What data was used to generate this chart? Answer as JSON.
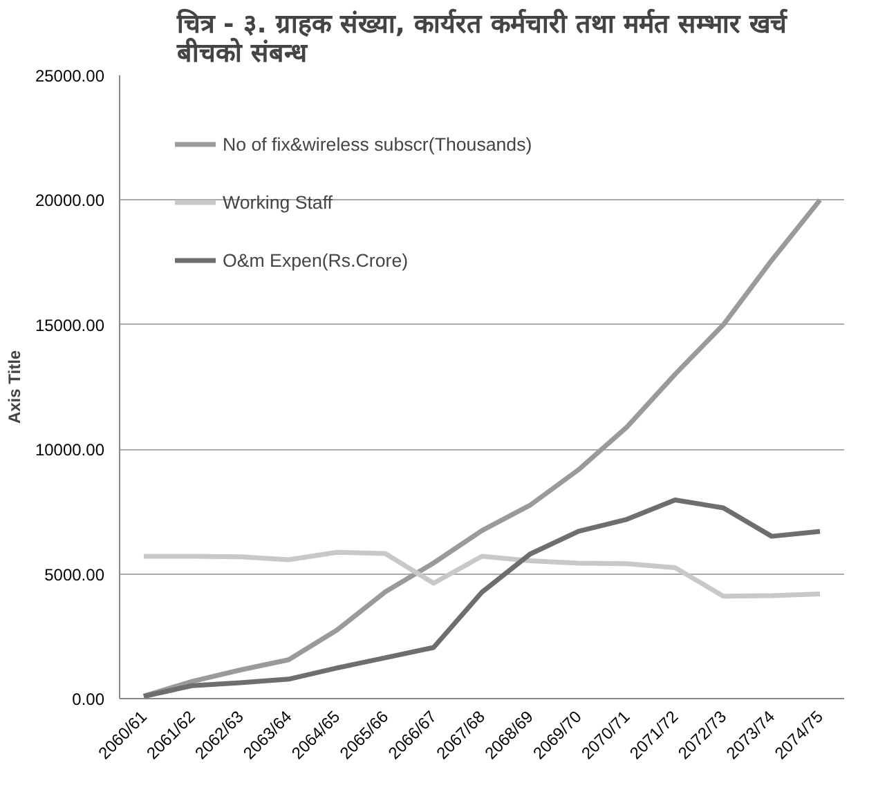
{
  "chart_data": {
    "type": "line",
    "title": "चित्र - ३. ग्राहक संख्या, कार्यरत कर्मचारी तथा मर्मत सम्भार खर्च बीचको संबन्ध",
    "ylabel": "Axis Title",
    "categories": [
      "2060/61",
      "2061/62",
      "2062/63",
      "2063/64",
      "2064/65",
      "2065/66",
      "2066/67",
      "2067/68",
      "2068/69",
      "2069/70",
      "2070/71",
      "2071/72",
      "2072/73",
      "2073/74",
      "2074/75"
    ],
    "series": [
      {
        "name": "No of fix&wireless subscr(Thousands)",
        "color": "#9a9a9a",
        "values": [
          100,
          690,
          1150,
          1560,
          2750,
          4280,
          5440,
          6740,
          7760,
          9180,
          10890,
          13010,
          15000,
          17580,
          20000
        ]
      },
      {
        "name": "Working Staff",
        "color": "#c8c8c8",
        "values": [
          5710,
          5710,
          5690,
          5570,
          5870,
          5820,
          4630,
          5710,
          5530,
          5430,
          5410,
          5250,
          4110,
          4130,
          4200
        ]
      },
      {
        "name": "O&m Expen(Rs.Crore)",
        "color": "#6e6e6e",
        "values": [
          90,
          520,
          640,
          780,
          1230,
          1640,
          2050,
          4270,
          5800,
          6710,
          7190,
          7970,
          7650,
          6510,
          6710
        ]
      }
    ],
    "ylim": [
      0,
      25000
    ],
    "yticks": [
      {
        "value": 0,
        "label": "0.00"
      },
      {
        "value": 5000,
        "label": "5000.00"
      },
      {
        "value": 10000,
        "label": "10000.00"
      },
      {
        "value": 15000,
        "label": "15000.00"
      },
      {
        "value": 20000,
        "label": "20000.00"
      },
      {
        "value": 25000,
        "label": "25000.00"
      }
    ],
    "grid": "y",
    "legend": "top left",
    "line_style": "solid"
  }
}
